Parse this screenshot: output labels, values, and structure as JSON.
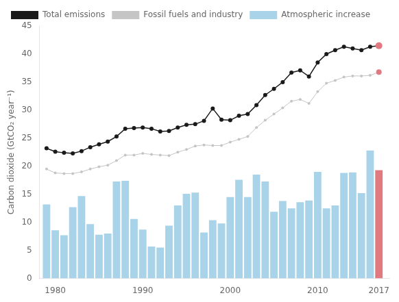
{
  "chart_data": {
    "type": "bar",
    "x": [
      1979,
      1980,
      1981,
      1982,
      1983,
      1984,
      1985,
      1986,
      1987,
      1988,
      1989,
      1990,
      1991,
      1992,
      1993,
      1994,
      1995,
      1996,
      1997,
      1998,
      1999,
      2000,
      2001,
      2002,
      2003,
      2004,
      2005,
      2006,
      2007,
      2008,
      2009,
      2010,
      2011,
      2012,
      2013,
      2014,
      2015,
      2016,
      2017
    ],
    "series": [
      {
        "name": "Total emissions",
        "type": "line",
        "marker": "o",
        "color": "#1a1a1a",
        "colors": [
          "#1a1a1a",
          "#1a1a1a",
          "#1a1a1a",
          "#1a1a1a",
          "#1a1a1a",
          "#1a1a1a",
          "#1a1a1a",
          "#1a1a1a",
          "#1a1a1a",
          "#1a1a1a",
          "#1a1a1a",
          "#1a1a1a",
          "#1a1a1a",
          "#1a1a1a",
          "#1a1a1a",
          "#1a1a1a",
          "#1a1a1a",
          "#1a1a1a",
          "#1a1a1a",
          "#1a1a1a",
          "#1a1a1a",
          "#1a1a1a",
          "#1a1a1a",
          "#1a1a1a",
          "#1a1a1a",
          "#1a1a1a",
          "#1a1a1a",
          "#1a1a1a",
          "#1a1a1a",
          "#1a1a1a",
          "#1a1a1a",
          "#1a1a1a",
          "#1a1a1a",
          "#1a1a1a",
          "#1a1a1a",
          "#1a1a1a",
          "#1a1a1a",
          "#1a1a1a",
          "#e07a80"
        ],
        "values": [
          23.2,
          22.6,
          22.4,
          22.3,
          22.7,
          23.4,
          23.9,
          24.4,
          25.3,
          26.7,
          26.8,
          26.9,
          26.7,
          26.2,
          26.3,
          26.9,
          27.4,
          27.5,
          28.1,
          30.3,
          28.3,
          28.2,
          29.0,
          29.3,
          30.9,
          32.7,
          33.8,
          35.0,
          36.7,
          37.1,
          36.0,
          38.5,
          40.0,
          40.7,
          41.3,
          41.0,
          40.7,
          41.3,
          41.5
        ]
      },
      {
        "name": "Fossil fuels and industry",
        "type": "line",
        "marker": "o",
        "color": "#c5c5c5",
        "colors": [
          "#c5c5c5",
          "#c5c5c5",
          "#c5c5c5",
          "#c5c5c5",
          "#c5c5c5",
          "#c5c5c5",
          "#c5c5c5",
          "#c5c5c5",
          "#c5c5c5",
          "#c5c5c5",
          "#c5c5c5",
          "#c5c5c5",
          "#c5c5c5",
          "#c5c5c5",
          "#c5c5c5",
          "#c5c5c5",
          "#c5c5c5",
          "#c5c5c5",
          "#c5c5c5",
          "#c5c5c5",
          "#c5c5c5",
          "#c5c5c5",
          "#c5c5c5",
          "#c5c5c5",
          "#c5c5c5",
          "#c5c5c5",
          "#c5c5c5",
          "#c5c5c5",
          "#c5c5c5",
          "#c5c5c5",
          "#c5c5c5",
          "#c5c5c5",
          "#c5c5c5",
          "#c5c5c5",
          "#c5c5c5",
          "#c5c5c5",
          "#c5c5c5",
          "#c5c5c5",
          "#e07a80"
        ],
        "values": [
          19.5,
          18.8,
          18.7,
          18.7,
          19.0,
          19.5,
          19.9,
          20.2,
          21.0,
          22.0,
          22.0,
          22.3,
          22.1,
          22.0,
          21.9,
          22.5,
          23.0,
          23.6,
          23.8,
          23.7,
          23.7,
          24.3,
          24.8,
          25.3,
          26.9,
          28.2,
          29.3,
          30.4,
          31.6,
          31.9,
          31.2,
          33.3,
          34.8,
          35.3,
          35.9,
          36.1,
          36.1,
          36.2,
          36.8
        ]
      },
      {
        "name": "Atmospheric increase",
        "type": "bar",
        "color": "#a8d3e8",
        "colors": [
          "#a8d3e8",
          "#a8d3e8",
          "#a8d3e8",
          "#a8d3e8",
          "#a8d3e8",
          "#a8d3e8",
          "#a8d3e8",
          "#a8d3e8",
          "#a8d3e8",
          "#a8d3e8",
          "#a8d3e8",
          "#a8d3e8",
          "#a8d3e8",
          "#a8d3e8",
          "#a8d3e8",
          "#a8d3e8",
          "#a8d3e8",
          "#a8d3e8",
          "#a8d3e8",
          "#a8d3e8",
          "#a8d3e8",
          "#a8d3e8",
          "#a8d3e8",
          "#a8d3e8",
          "#a8d3e8",
          "#a8d3e8",
          "#a8d3e8",
          "#a8d3e8",
          "#a8d3e8",
          "#a8d3e8",
          "#a8d3e8",
          "#a8d3e8",
          "#a8d3e8",
          "#a8d3e8",
          "#a8d3e8",
          "#a8d3e8",
          "#a8d3e8",
          "#a8d3e8",
          "#e07a80"
        ],
        "values": [
          13.2,
          8.6,
          7.7,
          12.7,
          14.7,
          9.7,
          7.8,
          8.0,
          17.3,
          17.4,
          10.6,
          8.7,
          5.7,
          5.5,
          9.4,
          13.0,
          15.1,
          15.3,
          8.2,
          10.4,
          9.8,
          14.5,
          17.6,
          14.5,
          18.5,
          17.3,
          11.9,
          13.8,
          12.5,
          13.6,
          13.9,
          19.0,
          12.5,
          13.0,
          18.8,
          18.9,
          15.2,
          22.8,
          19.3
        ]
      }
    ],
    "ylabel": "Carbon dioxide (GtCO₂ year⁻¹)",
    "xlim": [
      1978.2,
      2018.2
    ],
    "xticks": [
      1980,
      1990,
      2000,
      2010,
      2017
    ],
    "ylim": [
      0,
      45
    ],
    "yticks": [
      0,
      5,
      10,
      15,
      20,
      25,
      30,
      35,
      40,
      45
    ],
    "grid": false,
    "legend": "upper left"
  }
}
